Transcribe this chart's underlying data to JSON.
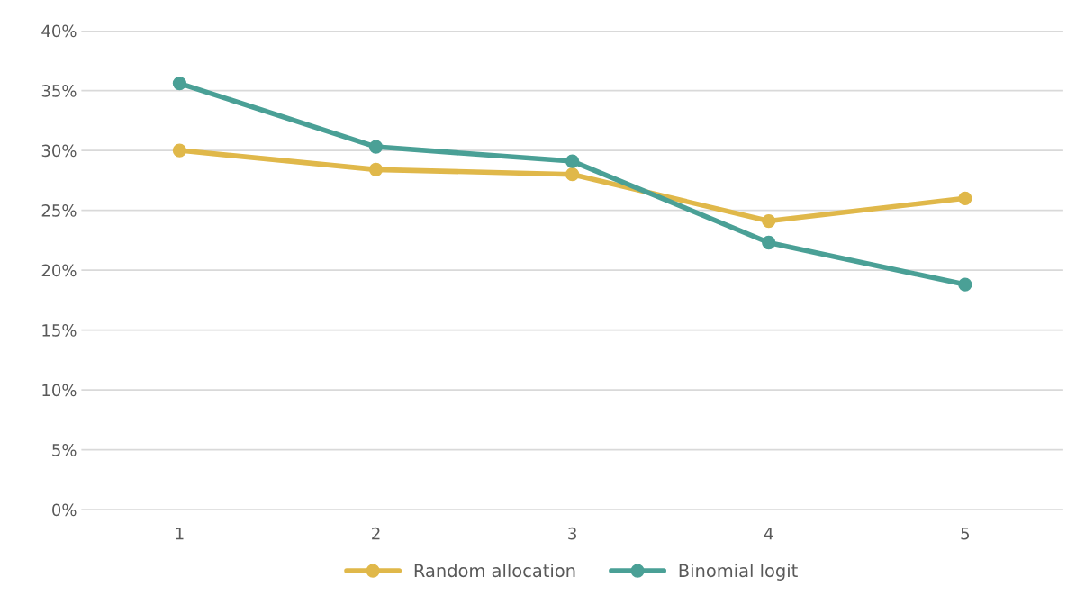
{
  "chart_data": {
    "type": "line",
    "categories": [
      "1",
      "2",
      "3",
      "4",
      "5"
    ],
    "series": [
      {
        "name": "Random allocation",
        "color": "#e0b84a",
        "values": [
          30.0,
          28.4,
          28.0,
          24.1,
          26.0
        ]
      },
      {
        "name": "Binomial logit",
        "color": "#4aa096",
        "values": [
          35.6,
          30.3,
          29.1,
          22.3,
          18.8
        ]
      }
    ],
    "ylim": [
      0,
      40
    ],
    "yticks": [
      {
        "value": 0,
        "label": "0%"
      },
      {
        "value": 5,
        "label": "5%"
      },
      {
        "value": 10,
        "label": "10%"
      },
      {
        "value": 15,
        "label": "15%"
      },
      {
        "value": 20,
        "label": "20%"
      },
      {
        "value": 25,
        "label": "25%"
      },
      {
        "value": 30,
        "label": "30%"
      },
      {
        "value": 35,
        "label": "35%"
      },
      {
        "value": 40,
        "label": "40%"
      }
    ],
    "grid": "y",
    "legend": "bottom",
    "marker": "circle",
    "line_style": "solid"
  }
}
